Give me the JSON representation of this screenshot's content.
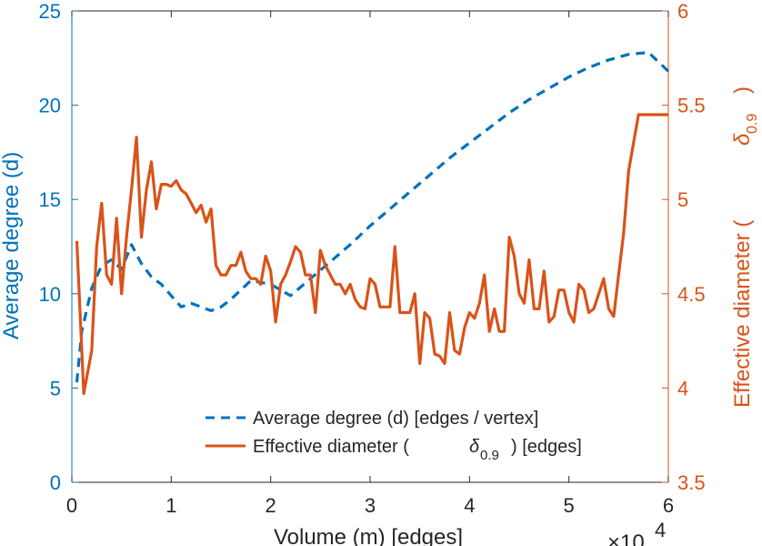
{
  "chart_data": {
    "type": "line",
    "dual_axis": true,
    "colors": {
      "left": "#0072BD",
      "right": "#D95319",
      "text": "#262626"
    },
    "xlabel": "Volume (m) [edges]",
    "x_exponent_label": "×10",
    "x_exponent_power": "4",
    "x_ticks": [
      "0",
      "1",
      "2",
      "3",
      "4",
      "5",
      "6"
    ],
    "xlim": [
      0,
      6
    ],
    "ylabel_left": "Average degree (d)",
    "ylim_left": [
      0,
      25
    ],
    "y_ticks_left": [
      "0",
      "5",
      "10",
      "15",
      "20",
      "25"
    ],
    "ylabel_right": "Effective diameter (",
    "ylabel_right_symbol": "δ",
    "ylabel_right_subscript": "0.9",
    "ylabel_right_close": ")",
    "ylim_right": [
      3.5,
      6
    ],
    "y_ticks_right": [
      "3.5",
      "4",
      "4.5",
      "5",
      "5.5",
      "6"
    ],
    "legend_position": "bottom-center",
    "series": [
      {
        "name": "Average degree (d) [edges / vertex]",
        "axis": "left",
        "style": "dashed",
        "x": [
          0.05,
          0.1,
          0.2,
          0.3,
          0.4,
          0.5,
          0.6,
          0.7,
          0.8,
          0.9,
          1.0,
          1.1,
          1.2,
          1.3,
          1.4,
          1.5,
          1.6,
          1.8,
          2.0,
          2.2,
          2.4,
          2.6,
          2.8,
          3.0,
          3.2,
          3.4,
          3.6,
          3.8,
          4.0,
          4.2,
          4.4,
          4.6,
          4.8,
          5.0,
          5.2,
          5.4,
          5.6,
          5.8,
          6.0
        ],
        "y": [
          5.3,
          8.0,
          10.3,
          11.5,
          11.8,
          11.3,
          12.6,
          11.6,
          10.9,
          10.5,
          9.9,
          9.3,
          9.5,
          9.3,
          9.1,
          9.3,
          9.7,
          10.7,
          10.5,
          9.9,
          10.8,
          11.7,
          12.6,
          13.6,
          14.5,
          15.4,
          16.3,
          17.2,
          18.0,
          18.8,
          19.6,
          20.3,
          20.9,
          21.5,
          22.0,
          22.4,
          22.7,
          22.8,
          21.8
        ]
      },
      {
        "name": "Effective diameter (",
        "name_symbol": "δ",
        "name_subscript": "0.9",
        "name_suffix": ") [edges]",
        "axis": "right",
        "style": "solid",
        "x": [
          0.05,
          0.12,
          0.2,
          0.25,
          0.3,
          0.35,
          0.4,
          0.45,
          0.5,
          0.55,
          0.6,
          0.65,
          0.7,
          0.75,
          0.8,
          0.85,
          0.9,
          0.95,
          1.0,
          1.05,
          1.1,
          1.15,
          1.2,
          1.25,
          1.3,
          1.35,
          1.4,
          1.45,
          1.5,
          1.55,
          1.6,
          1.65,
          1.7,
          1.75,
          1.8,
          1.85,
          1.9,
          1.95,
          2.0,
          2.05,
          2.1,
          2.15,
          2.2,
          2.25,
          2.3,
          2.35,
          2.4,
          2.45,
          2.5,
          2.55,
          2.6,
          2.65,
          2.7,
          2.75,
          2.8,
          2.85,
          2.9,
          2.95,
          3.0,
          3.05,
          3.1,
          3.15,
          3.2,
          3.25,
          3.3,
          3.35,
          3.4,
          3.45,
          3.5,
          3.55,
          3.6,
          3.65,
          3.7,
          3.75,
          3.8,
          3.85,
          3.9,
          3.95,
          4.0,
          4.05,
          4.1,
          4.15,
          4.2,
          4.25,
          4.3,
          4.35,
          4.4,
          4.45,
          4.5,
          4.55,
          4.6,
          4.65,
          4.7,
          4.75,
          4.8,
          4.85,
          4.9,
          4.95,
          5.0,
          5.05,
          5.1,
          5.15,
          5.2,
          5.25,
          5.3,
          5.35,
          5.4,
          5.45,
          5.5,
          5.55,
          5.6,
          5.65,
          5.7,
          5.75,
          5.8,
          5.85,
          5.9,
          5.95,
          6.0
        ],
        "y": [
          4.78,
          3.97,
          4.2,
          4.75,
          4.98,
          4.6,
          4.55,
          4.9,
          4.5,
          4.8,
          5.05,
          5.33,
          4.8,
          5.05,
          5.2,
          4.95,
          5.08,
          5.08,
          5.07,
          5.1,
          5.05,
          5.03,
          4.98,
          4.93,
          4.97,
          4.88,
          4.95,
          4.65,
          4.6,
          4.6,
          4.65,
          4.65,
          4.72,
          4.62,
          4.58,
          4.58,
          4.55,
          4.7,
          4.62,
          4.35,
          4.55,
          4.6,
          4.67,
          4.75,
          4.72,
          4.6,
          4.6,
          4.4,
          4.73,
          4.65,
          4.6,
          4.55,
          4.55,
          4.5,
          4.55,
          4.47,
          4.43,
          4.42,
          4.58,
          4.55,
          4.43,
          4.43,
          4.43,
          4.75,
          4.4,
          4.4,
          4.4,
          4.5,
          4.13,
          4.4,
          4.37,
          4.18,
          4.17,
          4.13,
          4.4,
          4.2,
          4.18,
          4.32,
          4.4,
          4.37,
          4.45,
          4.6,
          4.3,
          4.42,
          4.3,
          4.3,
          4.8,
          4.7,
          4.5,
          4.45,
          4.68,
          4.42,
          4.42,
          4.62,
          4.35,
          4.38,
          4.52,
          4.52,
          4.4,
          4.35,
          4.55,
          4.52,
          4.4,
          4.42,
          4.5,
          4.58,
          4.42,
          4.38,
          4.6,
          4.82,
          5.15,
          5.3,
          5.45,
          5.45,
          5.45,
          5.45,
          5.45,
          5.45,
          5.45
        ]
      }
    ]
  }
}
